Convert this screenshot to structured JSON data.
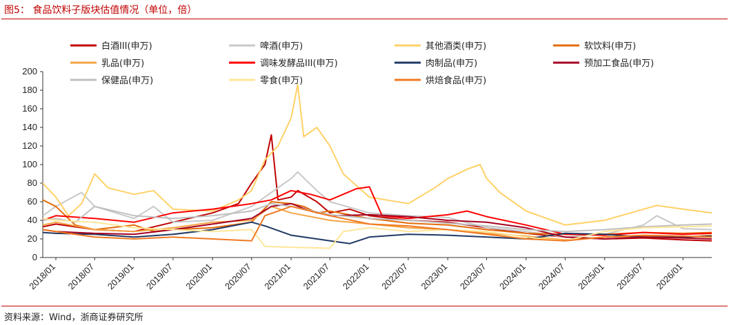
{
  "figure": {
    "title": "图5：  食品饮料子版块估值情况（单位，倍）",
    "source": "资料来源：Wind，浙商证券研究所"
  },
  "chart_data": {
    "type": "line",
    "x_type": "date",
    "xlim": [
      "2017-11-01",
      "2026-05-15"
    ],
    "x_ticks": [
      "2018/01",
      "2018/07",
      "2019/01",
      "2019/07",
      "2020/01",
      "2020/07",
      "2021/01",
      "2021/07",
      "2022/01",
      "2022/07",
      "2023/01",
      "2023/07",
      "2024/01",
      "2024/07",
      "2025/01",
      "2025/07",
      "2026/01"
    ],
    "ylim": [
      0,
      200
    ],
    "y_ticks": [
      0,
      20,
      40,
      60,
      80,
      100,
      120,
      140,
      160,
      180,
      200
    ],
    "grid": false,
    "legend_position": "top",
    "series": [
      {
        "name": "白酒III(申万)",
        "color": "#C00000",
        "points": [
          [
            "2017-11-01",
            33
          ],
          [
            "2018/01",
            36
          ],
          [
            "2018/07",
            30
          ],
          [
            "2019/01",
            28
          ],
          [
            "2019/07",
            38
          ],
          [
            "2020/01",
            48
          ],
          [
            "2020/05",
            58
          ],
          [
            "2020/07",
            80
          ],
          [
            "2020/09",
            100
          ],
          [
            "2020/10",
            132
          ],
          [
            "2020/11",
            62
          ],
          [
            "2021/01",
            65
          ],
          [
            "2021/02",
            72
          ],
          [
            "2021/05",
            60
          ],
          [
            "2021/07",
            48
          ],
          [
            "2021/10",
            52
          ],
          [
            "2022/01",
            45
          ],
          [
            "2022/07",
            40
          ],
          [
            "2023/01",
            38
          ],
          [
            "2023/07",
            32
          ],
          [
            "2024/01",
            26
          ],
          [
            "2024/07",
            22
          ],
          [
            "2025/01",
            20
          ],
          [
            "2025/07",
            21
          ],
          [
            "2026/01",
            19
          ],
          [
            "2026-05-15",
            18
          ]
        ]
      },
      {
        "name": "啤酒(申万)",
        "color": "#C8C8C8",
        "points": [
          [
            "2017-11-01",
            45
          ],
          [
            "2018/01",
            55
          ],
          [
            "2018/05",
            70
          ],
          [
            "2018/07",
            55
          ],
          [
            "2019/01",
            42
          ],
          [
            "2019/04",
            55
          ],
          [
            "2019/07",
            38
          ],
          [
            "2020/01",
            40
          ],
          [
            "2020/07",
            55
          ],
          [
            "2020/10",
            70
          ],
          [
            "2021/01",
            85
          ],
          [
            "2021/02",
            92
          ],
          [
            "2021/05",
            72
          ],
          [
            "2021/07",
            60
          ],
          [
            "2022/01",
            48
          ],
          [
            "2022/07",
            45
          ],
          [
            "2023/01",
            43
          ],
          [
            "2023/07",
            32
          ],
          [
            "2024/01",
            28
          ],
          [
            "2024/07",
            22
          ],
          [
            "2025/01",
            25
          ],
          [
            "2025/07",
            35
          ],
          [
            "2025/09",
            45
          ],
          [
            "2025/11",
            38
          ],
          [
            "2026/01",
            31
          ],
          [
            "2026-05-15",
            30
          ]
        ]
      },
      {
        "name": "其他酒类(申万)",
        "color": "#FFD166",
        "points": [
          [
            "2017-11-01",
            80
          ],
          [
            "2018/01",
            65
          ],
          [
            "2018/03",
            45
          ],
          [
            "2018/05",
            58
          ],
          [
            "2018/07",
            90
          ],
          [
            "2018/09",
            75
          ],
          [
            "2019/01",
            68
          ],
          [
            "2019/04",
            72
          ],
          [
            "2019/07",
            52
          ],
          [
            "2020/01",
            50
          ],
          [
            "2020/05",
            62
          ],
          [
            "2020/07",
            72
          ],
          [
            "2020/09",
            105
          ],
          [
            "2020/11",
            120
          ],
          [
            "2021/01",
            150
          ],
          [
            "2021/02",
            186
          ],
          [
            "2021/03",
            130
          ],
          [
            "2021/05",
            140
          ],
          [
            "2021/07",
            120
          ],
          [
            "2021/09",
            90
          ],
          [
            "2022/01",
            65
          ],
          [
            "2022/07",
            58
          ],
          [
            "2022/11",
            75
          ],
          [
            "2023/01",
            85
          ],
          [
            "2023/04",
            95
          ],
          [
            "2023/06",
            100
          ],
          [
            "2023/07",
            85
          ],
          [
            "2023/09",
            70
          ],
          [
            "2024/01",
            50
          ],
          [
            "2024/07",
            35
          ],
          [
            "2025/01",
            40
          ],
          [
            "2025/07",
            52
          ],
          [
            "2025/09",
            56
          ],
          [
            "2026/01",
            52
          ],
          [
            "2026-05-15",
            48
          ]
        ]
      },
      {
        "name": "软饮料(申万)",
        "color": "#E36C0A",
        "points": [
          [
            "2017-11-01",
            62
          ],
          [
            "2018/01",
            55
          ],
          [
            "2018/04",
            35
          ],
          [
            "2018/07",
            30
          ],
          [
            "2019/01",
            35
          ],
          [
            "2019/04",
            28
          ],
          [
            "2019/07",
            30
          ],
          [
            "2020/01",
            32
          ],
          [
            "2020/07",
            38
          ],
          [
            "2020/10",
            60
          ],
          [
            "2021/01",
            58
          ],
          [
            "2021/03",
            55
          ],
          [
            "2021/05",
            48
          ],
          [
            "2021/07",
            50
          ],
          [
            "2022/01",
            42
          ],
          [
            "2022/07",
            37
          ],
          [
            "2023/01",
            35
          ],
          [
            "2023/07",
            30
          ],
          [
            "2024/01",
            26
          ],
          [
            "2024/07",
            25
          ],
          [
            "2025/01",
            25
          ],
          [
            "2025/07",
            27
          ],
          [
            "2026/01",
            26
          ],
          [
            "2026-05-15",
            27
          ]
        ]
      },
      {
        "name": "乳品(申万)",
        "color": "#F4A443",
        "points": [
          [
            "2017-11-01",
            35
          ],
          [
            "2018/01",
            38
          ],
          [
            "2018/07",
            30
          ],
          [
            "2019/01",
            28
          ],
          [
            "2019/07",
            32
          ],
          [
            "2020/01",
            38
          ],
          [
            "2020/07",
            40
          ],
          [
            "2020/10",
            55
          ],
          [
            "2021/01",
            48
          ],
          [
            "2021/07",
            40
          ],
          [
            "2022/01",
            36
          ],
          [
            "2022/07",
            32
          ],
          [
            "2023/01",
            30
          ],
          [
            "2023/07",
            26
          ],
          [
            "2024/01",
            23
          ],
          [
            "2024/07",
            19
          ],
          [
            "2025/01",
            22
          ],
          [
            "2025/07",
            23
          ],
          [
            "2026/01",
            22
          ],
          [
            "2026-05-15",
            24
          ]
        ]
      },
      {
        "name": "调味发酵品III(申万)",
        "color": "#FF0000",
        "points": [
          [
            "2017-11-01",
            40
          ],
          [
            "2018/01",
            45
          ],
          [
            "2018/07",
            42
          ],
          [
            "2019/01",
            38
          ],
          [
            "2019/07",
            48
          ],
          [
            "2020/01",
            52
          ],
          [
            "2020/07",
            58
          ],
          [
            "2020/10",
            62
          ],
          [
            "2021/01",
            72
          ],
          [
            "2021/04",
            68
          ],
          [
            "2021/07",
            62
          ],
          [
            "2021/11",
            74
          ],
          [
            "2022/01",
            76
          ],
          [
            "2022/03",
            45
          ],
          [
            "2022/07",
            42
          ],
          [
            "2023/01",
            46
          ],
          [
            "2023/04",
            50
          ],
          [
            "2023/07",
            44
          ],
          [
            "2024/01",
            35
          ],
          [
            "2024/07",
            25
          ],
          [
            "2025/01",
            24
          ],
          [
            "2025/07",
            27
          ],
          [
            "2026/01",
            25
          ],
          [
            "2026-05-15",
            26
          ]
        ]
      },
      {
        "name": "肉制品(申万)",
        "color": "#1F3864",
        "points": [
          [
            "2017-11-01",
            27
          ],
          [
            "2018/01",
            26
          ],
          [
            "2018/07",
            25
          ],
          [
            "2019/01",
            22
          ],
          [
            "2019/07",
            25
          ],
          [
            "2020/01",
            30
          ],
          [
            "2020/07",
            38
          ],
          [
            "2020/09",
            34
          ],
          [
            "2021/01",
            24
          ],
          [
            "2021/07",
            18
          ],
          [
            "2021/10",
            15
          ],
          [
            "2022/01",
            22
          ],
          [
            "2022/07",
            25
          ],
          [
            "2023/01",
            24
          ],
          [
            "2023/07",
            22
          ],
          [
            "2024/01",
            20
          ],
          [
            "2024/07",
            26
          ],
          [
            "2025/01",
            25
          ],
          [
            "2025/07",
            22
          ],
          [
            "2026/01",
            22
          ],
          [
            "2026-05-15",
            23
          ]
        ]
      },
      {
        "name": "预加工食品(申万)",
        "color": "#A50021",
        "points": [
          [
            "2017-11-01",
            30
          ],
          [
            "2018/01",
            28
          ],
          [
            "2018/07",
            26
          ],
          [
            "2019/01",
            25
          ],
          [
            "2019/07",
            30
          ],
          [
            "2020/01",
            36
          ],
          [
            "2020/07",
            42
          ],
          [
            "2020/10",
            55
          ],
          [
            "2021/01",
            58
          ],
          [
            "2021/04",
            50
          ],
          [
            "2021/07",
            45
          ],
          [
            "2022/01",
            46
          ],
          [
            "2022/07",
            44
          ],
          [
            "2023/01",
            40
          ],
          [
            "2023/07",
            38
          ],
          [
            "2024/01",
            32
          ],
          [
            "2024/07",
            22
          ],
          [
            "2025/01",
            20
          ],
          [
            "2025/07",
            22
          ],
          [
            "2026/01",
            21
          ],
          [
            "2026-05-15",
            20
          ]
        ]
      },
      {
        "name": "保健品(申万)",
        "color": "#BFBFBF",
        "points": [
          [
            "2017-11-01",
            40
          ],
          [
            "2018/01",
            42
          ],
          [
            "2018/04",
            38
          ],
          [
            "2018/07",
            55
          ],
          [
            "2019/01",
            45
          ],
          [
            "2019/07",
            42
          ],
          [
            "2020/01",
            45
          ],
          [
            "2020/07",
            50
          ],
          [
            "2020/10",
            58
          ],
          [
            "2021/01",
            55
          ],
          [
            "2021/07",
            46
          ],
          [
            "2022/01",
            42
          ],
          [
            "2022/07",
            40
          ],
          [
            "2023/01",
            37
          ],
          [
            "2023/07",
            34
          ],
          [
            "2024/01",
            30
          ],
          [
            "2024/07",
            28
          ],
          [
            "2025/01",
            30
          ],
          [
            "2025/07",
            33
          ],
          [
            "2026/01",
            35
          ],
          [
            "2026-05-15",
            36
          ]
        ]
      },
      {
        "name": "零食(申万)",
        "color": "#FFE699",
        "points": [
          [
            "2017-11-01",
            42
          ],
          [
            "2018/01",
            40
          ],
          [
            "2018/07",
            38
          ],
          [
            "2019/01",
            32
          ],
          [
            "2019/07",
            30
          ],
          [
            "2020/01",
            28
          ],
          [
            "2020/07",
            30
          ],
          [
            "2020/09",
            12
          ],
          [
            "2021/01",
            11
          ],
          [
            "2021/07",
            10
          ],
          [
            "2021/09",
            28
          ],
          [
            "2022/01",
            32
          ],
          [
            "2022/07",
            28
          ],
          [
            "2023/01",
            30
          ],
          [
            "2023/07",
            28
          ],
          [
            "2024/01",
            22
          ],
          [
            "2024/07",
            18
          ],
          [
            "2025/01",
            28
          ],
          [
            "2025/07",
            32
          ],
          [
            "2026/01",
            33
          ],
          [
            "2026-05-15",
            34
          ]
        ]
      },
      {
        "name": "烘焙食品(申万)",
        "color": "#F07820",
        "points": [
          [
            "2017-11-01",
            30
          ],
          [
            "2018/01",
            28
          ],
          [
            "2018/07",
            22
          ],
          [
            "2019/01",
            20
          ],
          [
            "2019/07",
            22
          ],
          [
            "2020/01",
            20
          ],
          [
            "2020/07",
            18
          ],
          [
            "2020/09",
            45
          ],
          [
            "2021/01",
            55
          ],
          [
            "2021/07",
            45
          ],
          [
            "2022/01",
            36
          ],
          [
            "2022/07",
            34
          ],
          [
            "2023/01",
            30
          ],
          [
            "2023/07",
            25
          ],
          [
            "2024/01",
            20
          ],
          [
            "2024/07",
            18
          ],
          [
            "2025/01",
            22
          ],
          [
            "2025/07",
            24
          ],
          [
            "2026/01",
            23
          ],
          [
            "2026-05-15",
            22
          ]
        ]
      }
    ]
  }
}
